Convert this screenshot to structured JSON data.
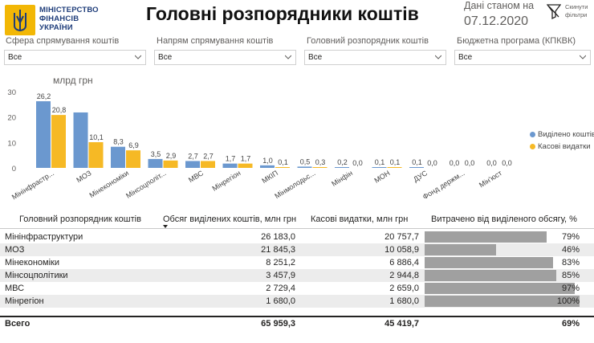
{
  "header": {
    "logo_lines": [
      "МІНІСТЕРСТВО",
      "ФІНАНСІВ",
      "УКРАЇНИ"
    ],
    "title": "Головні розпорядники коштів",
    "date_label": "Дані станом на",
    "date_value": "07.12.2020",
    "reset_label_1": "Скинути",
    "reset_label_2": "фільтри"
  },
  "slicers": [
    {
      "label": "Сфера спрямування коштів",
      "value": "Все"
    },
    {
      "label": "Напрям спрямування коштів",
      "value": "Все"
    },
    {
      "label": "Головний розпорядник коштів",
      "value": "Все"
    },
    {
      "label": "Бюджетна програма (КПКВК)",
      "value": "Все"
    }
  ],
  "chart_data": {
    "type": "bar",
    "ylabel": "млрд грн",
    "ylim": [
      0,
      30
    ],
    "yticks": [
      0,
      10,
      20,
      30
    ],
    "categories": [
      "Мінінфрастр...",
      "МОЗ",
      "Мінекономіки",
      "Мінсоцполіт...",
      "МВС",
      "Мінрегіон",
      "МКІП",
      "Мінмолодьс...",
      "Мінфін",
      "МОН",
      "ДУС",
      "Фонд держм...",
      "Мін'юст"
    ],
    "series": [
      {
        "name": "Виділено коштів",
        "color": "#6b98cf",
        "values": [
          26.2,
          21.8,
          8.3,
          3.5,
          2.7,
          1.7,
          1.0,
          0.5,
          0.2,
          0.1,
          0.1,
          0.0,
          0.0
        ],
        "labels": [
          "26,2",
          "",
          "8,3",
          "3,5",
          "2,7",
          "1,7",
          "1,0",
          "0,5",
          "0,2",
          "0,1",
          "0,1",
          "0,0",
          "0,0"
        ]
      },
      {
        "name": "Касові видатки",
        "color": "#f6b925",
        "values": [
          20.8,
          10.1,
          6.9,
          2.9,
          2.7,
          1.7,
          0.1,
          0.3,
          0.0,
          0.1,
          0.0,
          0.0,
          0.0
        ],
        "labels": [
          "20,8",
          "10,1",
          "6,9",
          "2,9",
          "2,7",
          "1,7",
          "0,1",
          "0,3",
          "0,0",
          "0,1",
          "0,0",
          "0,0",
          "0,0"
        ]
      }
    ],
    "legend_position": "right"
  },
  "table": {
    "headers": [
      "Головний розпорядник коштів",
      "Обсяг виділених коштів, млн грн",
      "Касові видатки, млн грн",
      "Витрачено від виділеного обсягу, %"
    ],
    "rows": [
      {
        "name": "Мінінфраструктури",
        "allocated": "26 183,0",
        "spent": "20 757,7",
        "pct": "79%",
        "ratio": 0.79
      },
      {
        "name": "МОЗ",
        "allocated": "21 845,3",
        "spent": "10 058,9",
        "pct": "46%",
        "ratio": 0.46
      },
      {
        "name": "Мінекономіки",
        "allocated": "8 251,2",
        "spent": "6 886,4",
        "pct": "83%",
        "ratio": 0.83
      },
      {
        "name": "Мінсоцполітики",
        "allocated": "3 457,9",
        "spent": "2 944,8",
        "pct": "85%",
        "ratio": 0.85
      },
      {
        "name": "МВС",
        "allocated": "2 729,4",
        "spent": "2 659,0",
        "pct": "97%",
        "ratio": 0.97
      },
      {
        "name": "Мінрегіон",
        "allocated": "1 680,0",
        "spent": "1 680,0",
        "pct": "100%",
        "ratio": 1.0
      }
    ],
    "total": {
      "name": "Всего",
      "allocated": "65 959,3",
      "spent": "45 419,7",
      "pct": "69%"
    }
  }
}
